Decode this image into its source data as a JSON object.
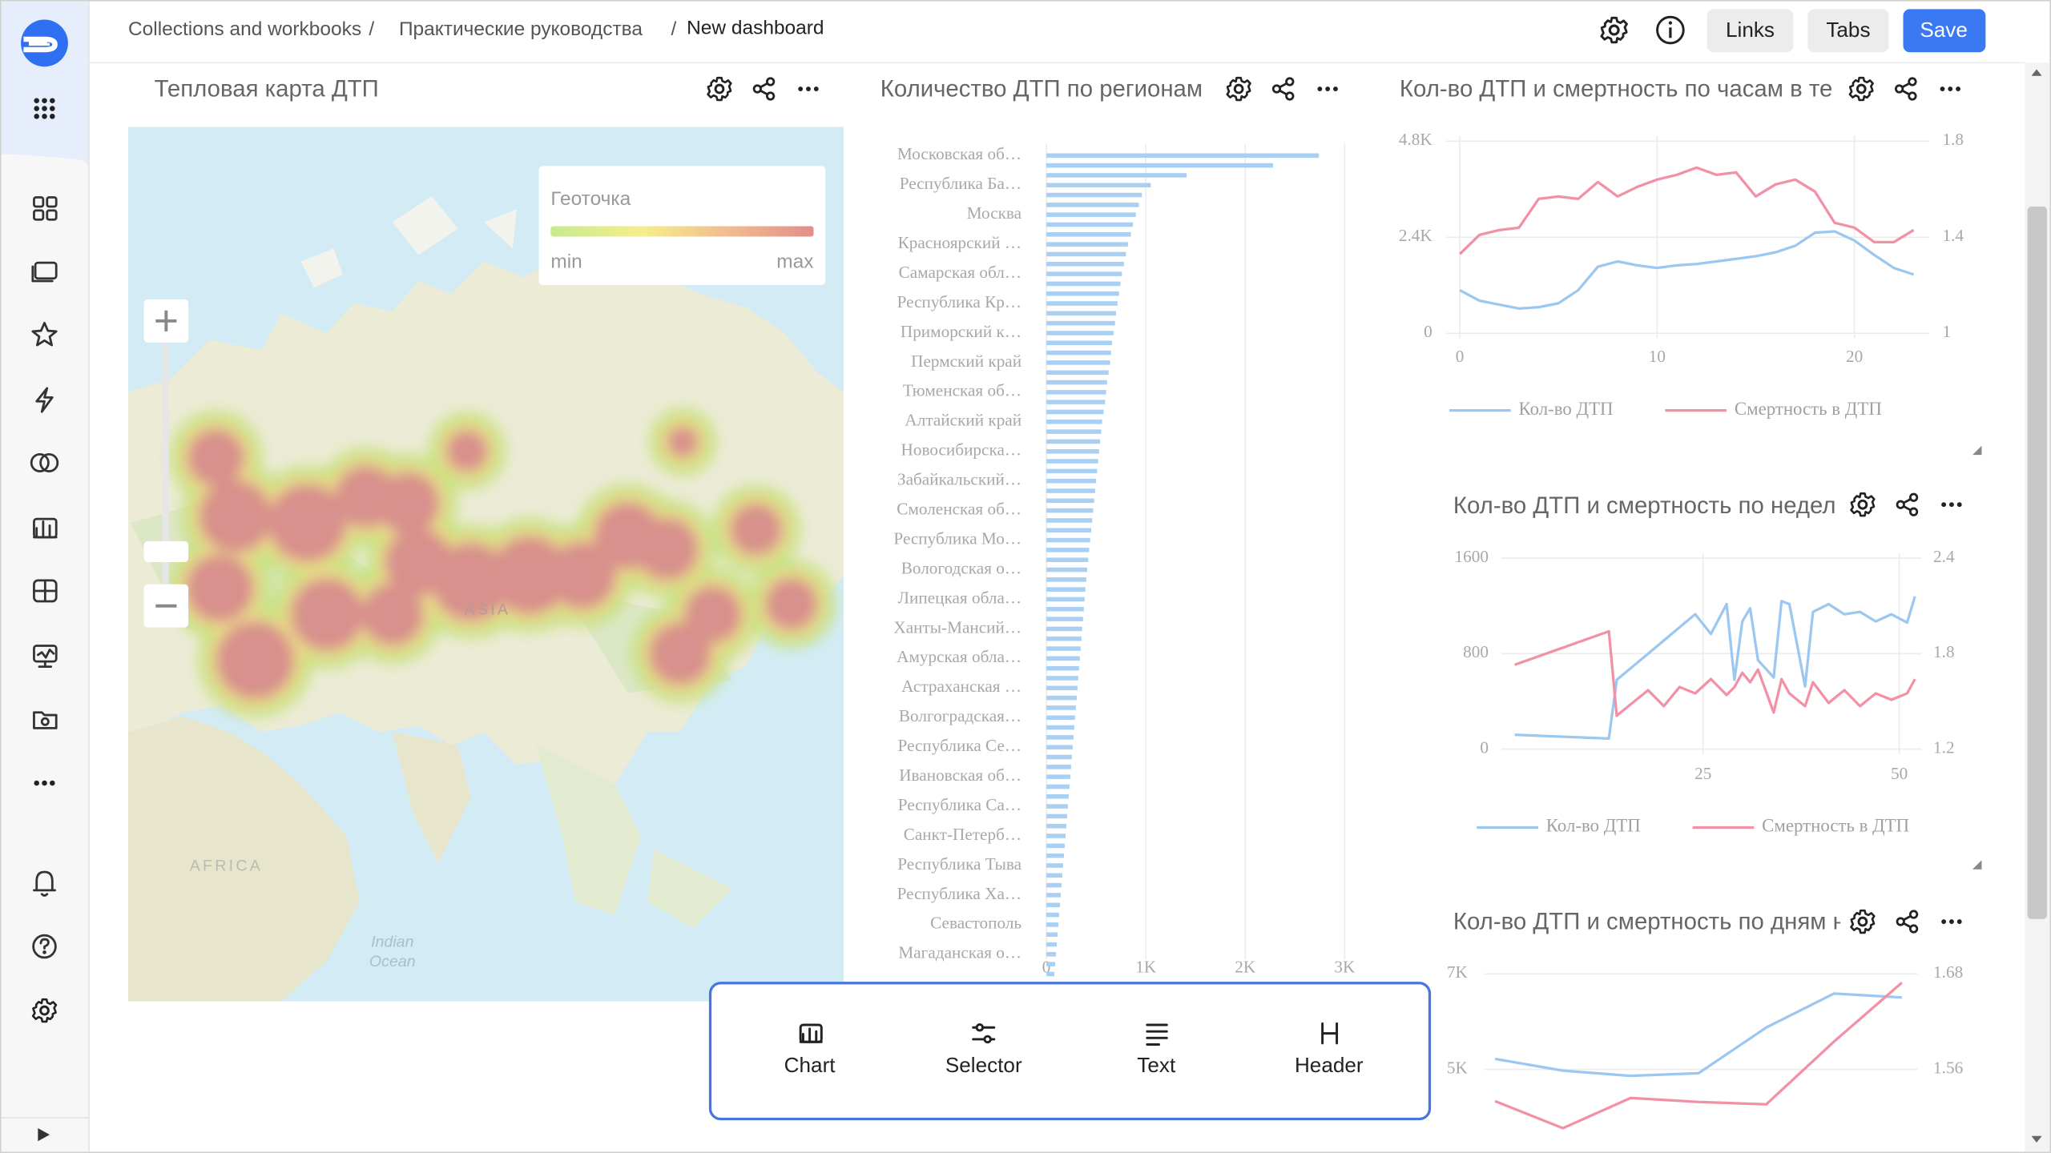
{
  "header": {
    "breadcrumbs": [
      "Collections and workbooks",
      "Практические руководства",
      "New dashboard"
    ],
    "separator": "/",
    "buttons": [
      "Links",
      "Tabs",
      "Save"
    ]
  },
  "heatmap": {
    "title": "Тепловая карта ДТП",
    "legend": {
      "title": "Геоточка",
      "min": "min",
      "max": "max"
    },
    "map_labels": [
      "AFRICA",
      "ASIA",
      "Indian",
      "Ocean"
    ]
  },
  "add_panel": {
    "items": [
      "Chart",
      "Selector",
      "Text",
      "Header"
    ]
  },
  "chart_data": [
    {
      "type": "bar",
      "orientation": "horizontal",
      "title": "Количество ДТП по регионам",
      "categories": [
        "Московская об…",
        null,
        null,
        "Республика Ба…",
        null,
        null,
        "Москва",
        null,
        null,
        "Красноярский …",
        null,
        null,
        "Самарская обл…",
        null,
        null,
        "Республика Кр…",
        null,
        null,
        "Приморский к…",
        null,
        null,
        "Пермский край",
        null,
        null,
        "Тюменская об…",
        null,
        null,
        "Алтайский край",
        null,
        null,
        "Новосибирска…",
        null,
        null,
        "Забайкальский…",
        null,
        null,
        "Смоленская об…",
        null,
        null,
        "Республика Мо…",
        null,
        null,
        "Вологодская о…",
        null,
        null,
        "Липецкая обла…",
        null,
        null,
        "Ханты-Мансий…",
        null,
        null,
        "Амурская обла…",
        null,
        null,
        "Астраханская …",
        null,
        null,
        "Волгоградская…",
        null,
        null,
        "Республика Се…",
        null,
        null,
        "Ивановская об…",
        null,
        null,
        "Республика Са…",
        null,
        null,
        "Санкт-Петерб…",
        null,
        null,
        "Республика Тыва",
        null,
        null,
        "Республика Ха…",
        null,
        null,
        "Севастополь",
        null,
        null,
        "Магаданская о…",
        null,
        null
      ],
      "values": [
        2740,
        2280,
        1410,
        1050,
        960,
        930,
        900,
        870,
        850,
        820,
        800,
        780,
        760,
        745,
        730,
        715,
        700,
        690,
        675,
        660,
        650,
        640,
        625,
        610,
        600,
        590,
        575,
        560,
        550,
        540,
        530,
        520,
        510,
        500,
        490,
        480,
        470,
        460,
        450,
        440,
        430,
        420,
        410,
        400,
        392,
        384,
        376,
        368,
        360,
        352,
        344,
        336,
        328,
        320,
        312,
        304,
        296,
        288,
        280,
        272,
        264,
        256,
        248,
        240,
        232,
        224,
        216,
        208,
        200,
        192,
        184,
        176,
        168,
        160,
        152,
        144,
        136,
        128,
        120,
        112,
        104,
        96,
        88,
        80
      ],
      "color": "#a9cff2",
      "xlim": [
        0,
        3000
      ],
      "xticks": [
        0,
        {
          "value": 1000,
          "label": "1K"
        },
        {
          "value": 2000,
          "label": "2K"
        },
        {
          "value": 3000,
          "label": "3K"
        }
      ],
      "grid": true
    },
    {
      "type": "line",
      "title": "Кол-во ДТП и смертность по часам в те",
      "x": [
        0,
        1,
        2,
        3,
        4,
        5,
        6,
        7,
        8,
        9,
        10,
        11,
        12,
        13,
        14,
        15,
        16,
        17,
        18,
        19,
        20,
        21,
        22,
        23
      ],
      "xlim": [
        0,
        23
      ],
      "xticks": [
        0,
        10,
        20
      ],
      "ylim": [
        0,
        4800
      ],
      "yticks": [
        0,
        {
          "value": 2400,
          "label": "2.4K"
        },
        {
          "value": 4800,
          "label": "4.8K"
        }
      ],
      "y2lim": [
        1,
        1.8
      ],
      "y2ticks": [
        1,
        1.4,
        1.8
      ],
      "grid": true,
      "series": [
        {
          "name": "Кол-во ДТП",
          "color": "#9cc7f0",
          "values": [
            1078,
            816,
            718,
            620,
            653,
            751,
            1078,
            1665,
            1796,
            1698,
            1633,
            1698,
            1731,
            1796,
            1861,
            1927,
            2024,
            2188,
            2514,
            2547,
            2318,
            1959,
            1633,
            1469
          ]
        },
        {
          "name": "Смертность в ДТП",
          "color": "#f291a5",
          "axis": "y2",
          "values": [
            1.33,
            1.41,
            1.43,
            1.44,
            1.56,
            1.57,
            1.56,
            1.63,
            1.57,
            1.61,
            1.64,
            1.66,
            1.69,
            1.66,
            1.67,
            1.57,
            1.62,
            1.64,
            1.59,
            1.46,
            1.44,
            1.38,
            1.38,
            1.43
          ]
        }
      ]
    },
    {
      "type": "line",
      "title": "Кол-во ДТП и смертность по недел",
      "x": [
        1,
        13,
        14,
        16,
        18,
        20,
        22,
        24,
        26,
        28,
        29,
        30,
        31,
        32,
        34,
        35,
        36,
        38,
        39,
        41,
        43,
        45,
        47,
        49,
        51,
        52
      ],
      "xlim": [
        0,
        53
      ],
      "xticks": [
        25,
        50
      ],
      "ylim": [
        0,
        1600
      ],
      "yticks": [
        0,
        800,
        1600
      ],
      "y2lim": [
        1.2,
        2.4
      ],
      "y2ticks": [
        1.2,
        1.8,
        2.4
      ],
      "grid": true,
      "series": [
        {
          "name": "Кол-во ДТП",
          "color": "#9cc7f0",
          "values": [
            120,
            88,
            580,
            690,
            800,
            910,
            1020,
            1130,
            965,
            1215,
            580,
            1070,
            1180,
            745,
            600,
            1240,
            1215,
            525,
            1150,
            1215,
            1130,
            1150,
            1070,
            1130,
            1060,
            1280
          ]
        },
        {
          "name": "Смертность в ДТП",
          "color": "#f291a5",
          "axis": "y2",
          "values": [
            1.73,
            1.94,
            1.41,
            1.49,
            1.57,
            1.47,
            1.59,
            1.55,
            1.64,
            1.54,
            1.59,
            1.68,
            1.62,
            1.7,
            1.43,
            1.64,
            1.55,
            1.47,
            1.62,
            1.49,
            1.57,
            1.47,
            1.55,
            1.51,
            1.55,
            1.64
          ]
        }
      ]
    },
    {
      "type": "line",
      "title": "Кол-во ДТП и смертность по дням н",
      "categories": [
        null,
        null,
        null,
        null,
        null,
        null,
        null
      ],
      "ylim": [
        3000,
        7000
      ],
      "yticks": [
        {
          "value": 5000,
          "label": "5K"
        },
        {
          "value": 7000,
          "label": "7K"
        }
      ],
      "y2lim": [
        1.44,
        1.68
      ],
      "y2ticks": [
        1.56,
        1.68
      ],
      "grid": true,
      "series": [
        {
          "color": "#9cc7f0",
          "values": [
            5219,
            4973,
            4863,
            4918,
            5877,
            6589,
            6507
          ]
        },
        {
          "color": "#f291a5",
          "axis": "y2",
          "values": [
            1.52,
            1.486,
            1.524,
            1.519,
            1.516,
            1.595,
            1.669
          ]
        }
      ]
    }
  ]
}
